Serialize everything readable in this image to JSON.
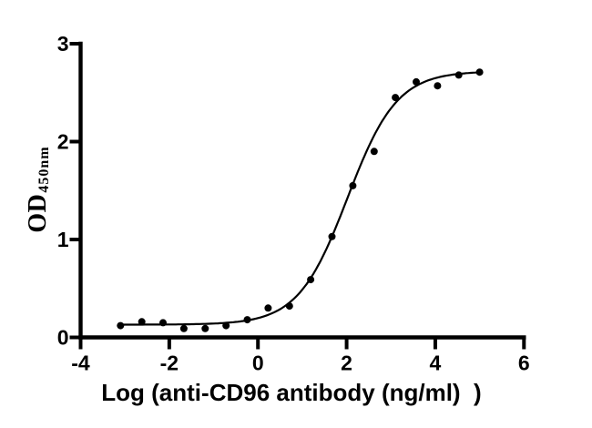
{
  "figure": {
    "background_color": "#ffffff"
  },
  "chart_data": {
    "type": "scatter",
    "title": "",
    "xlabel": "Log (anti-CD96 antibody (ng/ml)  )",
    "ylabel": "OD450nm",
    "ylabel_main": "OD",
    "ylabel_sub": "450nm",
    "xlim": [
      -4,
      6
    ],
    "ylim": [
      0,
      3
    ],
    "x_ticks": [
      -4,
      -2,
      0,
      2,
      4,
      6
    ],
    "y_ticks": [
      0,
      1,
      2,
      3
    ],
    "grid": false,
    "legend": "none",
    "marker_color": "#000000",
    "line_color": "#000000",
    "axis_color": "#000000",
    "points": [
      [
        -3.1,
        0.12
      ],
      [
        -2.62,
        0.16
      ],
      [
        -2.14,
        0.15
      ],
      [
        -1.67,
        0.09
      ],
      [
        -1.19,
        0.09
      ],
      [
        -0.72,
        0.12
      ],
      [
        -0.24,
        0.18
      ],
      [
        0.23,
        0.3
      ],
      [
        0.71,
        0.32
      ],
      [
        1.19,
        0.59
      ],
      [
        1.67,
        1.03
      ],
      [
        2.14,
        1.55
      ],
      [
        2.62,
        1.9
      ],
      [
        3.1,
        2.45
      ],
      [
        3.57,
        2.61
      ],
      [
        4.05,
        2.57
      ],
      [
        4.53,
        2.68
      ],
      [
        5.0,
        2.71
      ]
    ],
    "fit_curve": {
      "model": "4PL",
      "bottom": 0.13,
      "top": 2.72,
      "logEC50": 2.02,
      "hillslope": 0.78,
      "x_range": [
        -3.1,
        5.0
      ]
    }
  }
}
